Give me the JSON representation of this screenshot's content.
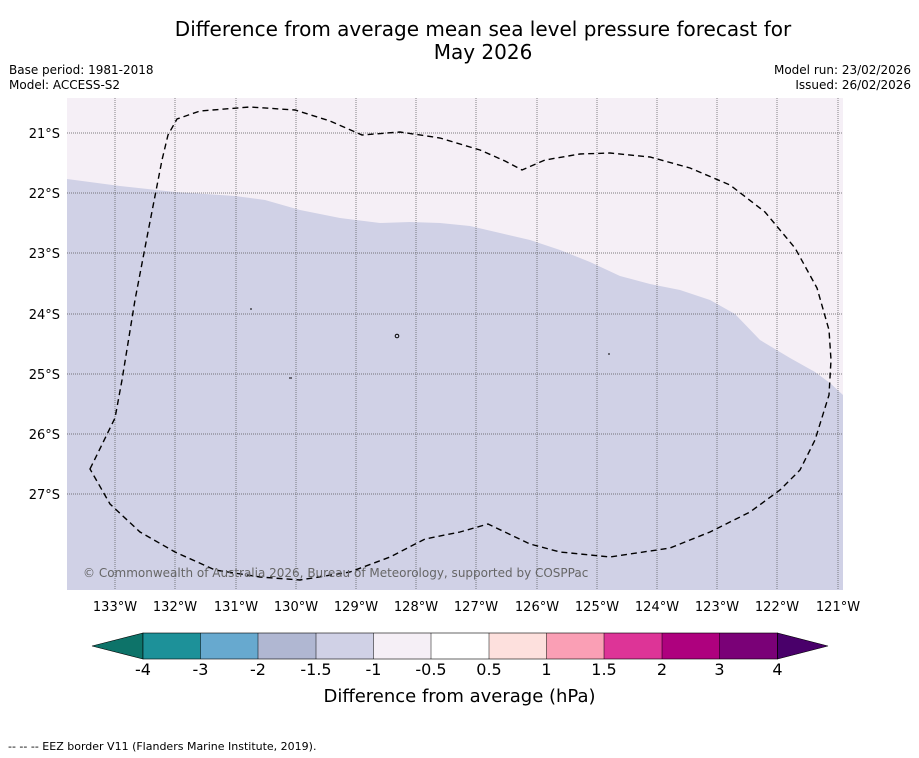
{
  "title": {
    "line1": "Difference from average mean sea level pressure forecast for",
    "line2": "May 2026"
  },
  "meta": {
    "base_period": "Base period: 1981-2018",
    "model": "Model: ACCESS-S2",
    "model_run": "Model run: 23/02/2026",
    "issued": "Issued: 26/02/2026"
  },
  "map": {
    "lat_labels": [
      "21°S",
      "22°S",
      "23°S",
      "24°S",
      "25°S",
      "26°S",
      "27°S"
    ],
    "lon_labels": [
      "133°W",
      "132°W",
      "131°W",
      "130°W",
      "129°W",
      "128°W",
      "127°W",
      "126°W",
      "125°W",
      "124°W",
      "123°W",
      "122°W",
      "121°W"
    ],
    "copyright": "© Commonwealth of Australia 2026, Bureau of Meteorology, supported by COSPPac",
    "colors": {
      "band_neg_0_5_to_1": "#f5eff6",
      "band_neg_1_to_1_5": "#d0d1e6",
      "eez_line": "#000000"
    }
  },
  "colorbar": {
    "tick_labels": [
      "-4",
      "-3",
      "-2",
      "-1.5",
      "-1",
      "-0.5",
      "0.5",
      "1",
      "1.5",
      "2",
      "3",
      "4"
    ],
    "segment_colors": [
      "#0d7369",
      "#1d9199",
      "#67a9cf",
      "#b0b7d2",
      "#d0d1e6",
      "#f5eff6",
      "#ffffff",
      "#fde0dd",
      "#fa9fb5",
      "#dd3497",
      "#ae017e",
      "#7a0177",
      "#49006a"
    ],
    "label": "Difference from average (hPa)"
  },
  "footer": {
    "legend": "--  --  -- EEZ border V11 (Flanders Marine Institute, 2019)."
  }
}
